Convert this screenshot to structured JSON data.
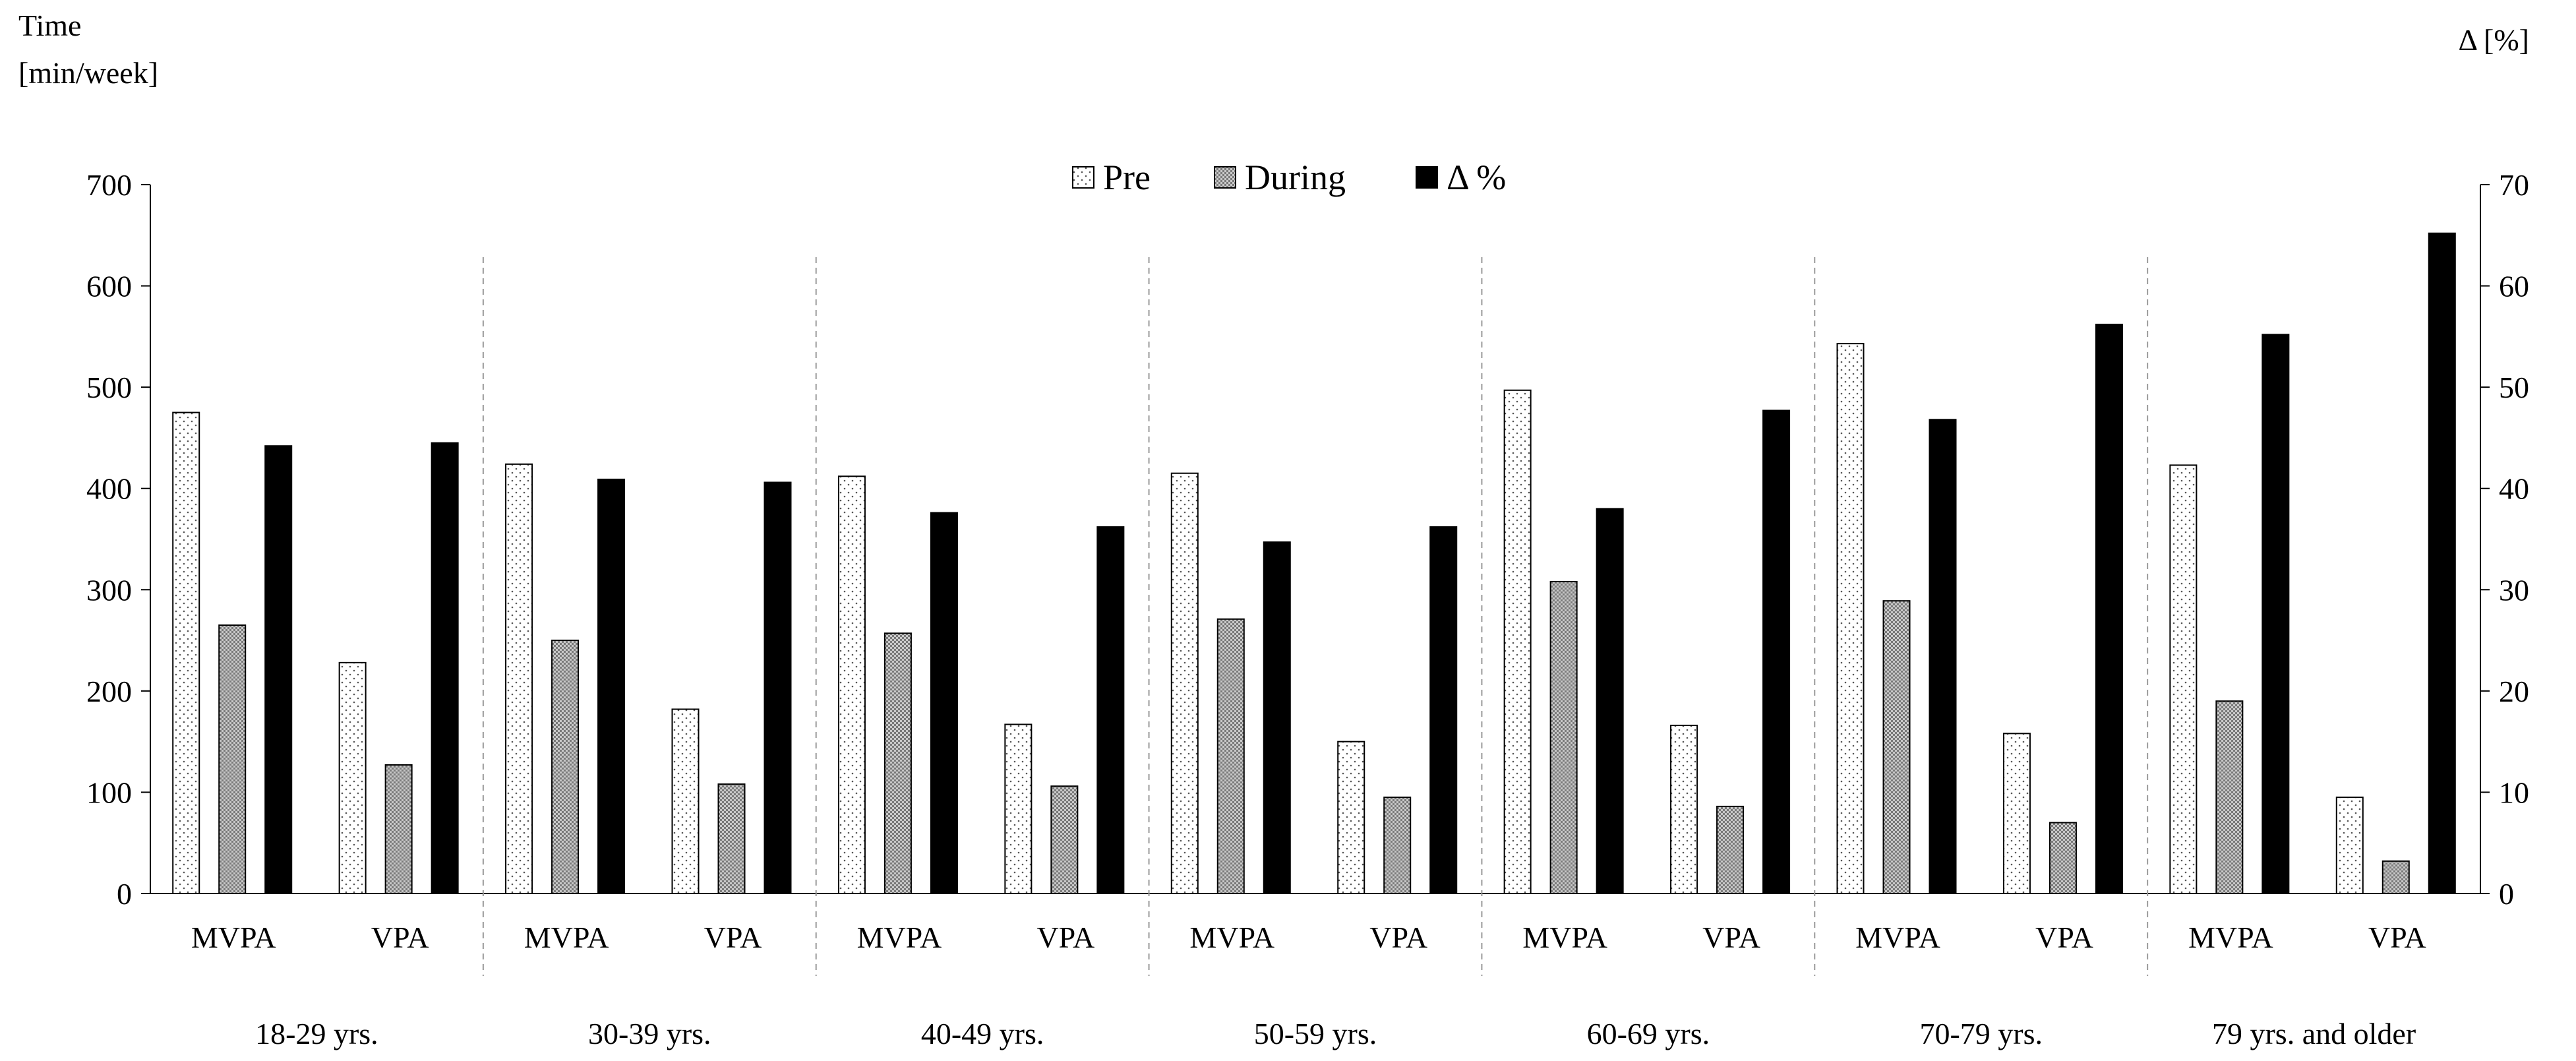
{
  "chart_data": {
    "type": "bar",
    "y_left_title": [
      "Time",
      "[min/week]"
    ],
    "y_right_title": "Δ [%]",
    "y_left_range": [
      0,
      700
    ],
    "y_left_ticks": [
      "0",
      "100",
      "200",
      "300",
      "400",
      "500",
      "600",
      "700"
    ],
    "y_right_range": [
      0,
      70
    ],
    "y_right_ticks": [
      "0",
      "10",
      "20",
      "30",
      "40",
      "50",
      "60",
      "70"
    ],
    "legend": {
      "placement": "top-center",
      "entries": [
        "Pre",
        "During",
        "Δ %"
      ]
    },
    "groups": [
      {
        "label": "18-29 yrs.",
        "categories": [
          {
            "label": "MVPA",
            "pre": 475,
            "during": 265,
            "delta": 44.2
          },
          {
            "label": "VPA",
            "pre": 228,
            "during": 127,
            "delta": 44.5
          }
        ]
      },
      {
        "label": "30-39 yrs.",
        "categories": [
          {
            "label": "MVPA",
            "pre": 424,
            "during": 250,
            "delta": 40.9
          },
          {
            "label": "VPA",
            "pre": 182,
            "during": 108,
            "delta": 40.6
          }
        ]
      },
      {
        "label": "40-49 yrs.",
        "categories": [
          {
            "label": "MVPA",
            "pre": 412,
            "during": 257,
            "delta": 37.6
          },
          {
            "label": "VPA",
            "pre": 167,
            "during": 106,
            "delta": 36.2
          }
        ]
      },
      {
        "label": "50-59 yrs.",
        "categories": [
          {
            "label": "MVPA",
            "pre": 415,
            "during": 271,
            "delta": 34.7
          },
          {
            "label": "VPA",
            "pre": 150,
            "during": 95,
            "delta": 36.2
          }
        ]
      },
      {
        "label": "60-69 yrs.",
        "categories": [
          {
            "label": "MVPA",
            "pre": 497,
            "during": 308,
            "delta": 38.0
          },
          {
            "label": "VPA",
            "pre": 166,
            "during": 86,
            "delta": 47.7
          }
        ]
      },
      {
        "label": "70-79 yrs.",
        "categories": [
          {
            "label": "MVPA",
            "pre": 543,
            "during": 289,
            "delta": 46.8
          },
          {
            "label": "VPA",
            "pre": 158,
            "during": 70,
            "delta": 56.2
          }
        ]
      },
      {
        "label": "79 yrs. and older",
        "categories": [
          {
            "label": "MVPA",
            "pre": 423,
            "during": 190,
            "delta": 55.2
          },
          {
            "label": "VPA",
            "pre": 95,
            "during": 32,
            "delta": 65.2
          }
        ]
      }
    ]
  }
}
